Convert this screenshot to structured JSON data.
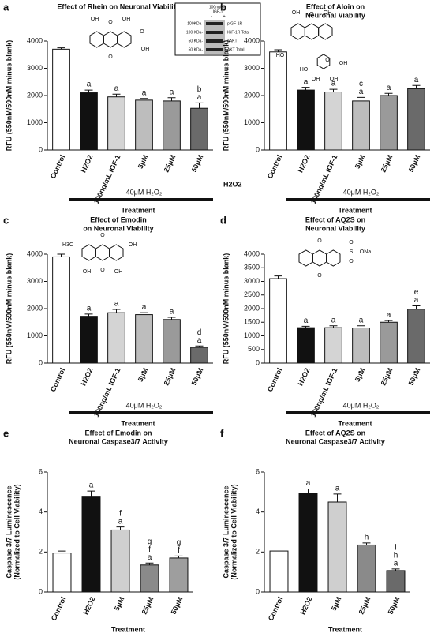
{
  "chart_data": [
    {
      "type": "bar",
      "panel": "a",
      "title": [
        "Effect of Rhein on Neuronal Viability"
      ],
      "y_label": [
        "RFU (550nM/590nM minus blank)"
      ],
      "x_label": "Treatment",
      "bracket_label": "40μM H₂O₂",
      "categories": [
        "Control",
        "H2O2",
        "100ng/mL IGF-1",
        "5μM",
        "25μM",
        "50μM"
      ],
      "values": [
        3700,
        2100,
        1950,
        1830,
        1800,
        1530
      ],
      "errors": [
        50,
        100,
        100,
        60,
        120,
        200
      ],
      "letters": [
        null,
        [
          "a"
        ],
        [
          "a"
        ],
        [
          "a"
        ],
        [
          "a"
        ],
        [
          "b",
          "a"
        ]
      ],
      "colors": [
        "#ffffff",
        "#111111",
        "#d4d4d4",
        "#bdbdbd",
        "#9a9a9a",
        "#6a6a6a"
      ],
      "ylim": [
        0,
        4000
      ],
      "yticks": [
        0,
        1000,
        2000,
        3000,
        4000
      ],
      "structure_labels": [
        "OH",
        "O",
        "OH",
        "O",
        "OH",
        "O"
      ],
      "blot": {
        "header": [
          "100ng/mL",
          "IGF-1"
        ],
        "lanes": [
          "-",
          "+"
        ],
        "markers": [
          "100KDa-",
          "100 KDa-",
          "50 KDa-",
          "50 KDa-"
        ],
        "bands": [
          "pIGF-1R",
          "IGF-1R Total",
          "pAKT",
          "AKT Total"
        ]
      }
    },
    {
      "type": "bar",
      "panel": "b",
      "title": [
        "Effect of Aloin on",
        "Neuronal Viability"
      ],
      "y_label": [
        "RFU (550nM/590nM minus blank)"
      ],
      "x_label": "Treatment",
      "bracket_label": "40μM H₂O₂",
      "extra_label": "H2O2",
      "categories": [
        "Control",
        "H2O2",
        "100ng/mL IGF-1",
        "5μM",
        "25μM",
        "50μM"
      ],
      "values": [
        3600,
        2200,
        2130,
        1800,
        2000,
        2250
      ],
      "errors": [
        80,
        100,
        100,
        130,
        80,
        120
      ],
      "letters": [
        null,
        [
          "a"
        ],
        [
          "a"
        ],
        [
          "c",
          "a"
        ],
        [
          "a"
        ],
        [
          "a"
        ]
      ],
      "colors": [
        "#ffffff",
        "#111111",
        "#d4d4d4",
        "#bdbdbd",
        "#9a9a9a",
        "#6a6a6a"
      ],
      "ylim": [
        0,
        4000
      ],
      "yticks": [
        0,
        1000,
        2000,
        3000,
        4000
      ],
      "structure_labels": [
        "OH",
        "O",
        "OH",
        "HO",
        "O",
        "OH",
        "OH",
        "OH",
        "HO"
      ]
    },
    {
      "type": "bar",
      "panel": "c",
      "title": [
        "Effect of Emodin",
        "on Neuronal Viability"
      ],
      "y_label": [
        "RFU (550nM/590nM minus blank)"
      ],
      "x_label": "Treatment",
      "bracket_label": "40μM H₂O₂",
      "categories": [
        "Control",
        "H2O2",
        "100ng/mL IGF-1",
        "5μM",
        "25μM",
        "50μM"
      ],
      "values": [
        3900,
        1720,
        1850,
        1780,
        1600,
        580
      ],
      "errors": [
        100,
        80,
        120,
        70,
        80,
        50
      ],
      "letters": [
        null,
        [
          "a"
        ],
        [
          "a"
        ],
        [
          "a"
        ],
        [
          "a"
        ],
        [
          "d",
          "a"
        ]
      ],
      "colors": [
        "#ffffff",
        "#111111",
        "#d4d4d4",
        "#bdbdbd",
        "#9a9a9a",
        "#6a6a6a"
      ],
      "ylim": [
        0,
        4000
      ],
      "yticks": [
        0,
        1000,
        2000,
        3000,
        4000
      ],
      "structure_labels": [
        "H3C",
        "O",
        "OH",
        "OH",
        "O",
        "OH"
      ]
    },
    {
      "type": "bar",
      "panel": "d",
      "title": [
        "Effect of AQ2S on",
        "Neuronal Viability"
      ],
      "y_label": [
        "RFU (550nM/590nM minus blank)"
      ],
      "x_label": "Treatment",
      "bracket_label": "40μM H₂O₂",
      "categories": [
        "Control",
        "H2O2",
        "100ng/mL IGF-1",
        "5μM",
        "25μM",
        "50μM"
      ],
      "values": [
        3100,
        1300,
        1300,
        1290,
        1500,
        1980
      ],
      "errors": [
        100,
        50,
        70,
        80,
        60,
        120
      ],
      "letters": [
        null,
        [
          "a"
        ],
        [
          "a"
        ],
        [
          "a"
        ],
        [
          "a"
        ],
        [
          "e",
          "a"
        ]
      ],
      "colors": [
        "#ffffff",
        "#111111",
        "#d4d4d4",
        "#bdbdbd",
        "#9a9a9a",
        "#6a6a6a"
      ],
      "ylim": [
        0,
        4000
      ],
      "yticks": [
        0,
        500,
        1000,
        1500,
        2000,
        2500,
        3000,
        3500,
        4000
      ],
      "structure_labels": [
        "O",
        "O",
        "S",
        "O",
        "O",
        "ONa"
      ]
    },
    {
      "type": "bar",
      "panel": "e",
      "title": [
        "Effect of Emodin on",
        "Neuronal Caspase3/7 Activity"
      ],
      "y_label": [
        "Caspase 3/7 Luminescence",
        "(Normalized to Cell Viability)"
      ],
      "x_label": "Treatment",
      "categories": [
        "Control",
        "H2O2",
        "5μM",
        "25μM",
        "50μM"
      ],
      "values": [
        1.95,
        4.75,
        3.1,
        1.35,
        1.7
      ],
      "errors": [
        0.1,
        0.3,
        0.15,
        0.1,
        0.1
      ],
      "letters": [
        null,
        [
          "a"
        ],
        [
          "f",
          "a"
        ],
        [
          "g",
          "f",
          "a"
        ],
        [
          "g",
          "f"
        ]
      ],
      "colors": [
        "#ffffff",
        "#111111",
        "#cfcfcf",
        "#8a8a8a",
        "#9e9e9e"
      ],
      "ylim": [
        0,
        6
      ],
      "yticks": [
        0,
        2,
        4,
        6
      ]
    },
    {
      "type": "bar",
      "panel": "f",
      "title": [
        "Effect of  AQ2S on",
        "Neuronal Caspase3/7 Activity"
      ],
      "y_label": [
        "Caspase 3/7 Luminescence",
        "(Normalized to Cell Viability)"
      ],
      "x_label": "Treatment",
      "categories": [
        "Control",
        "H2O2",
        "5μM",
        "25μM",
        "50μM"
      ],
      "values": [
        2.05,
        4.95,
        4.5,
        2.35,
        1.07
      ],
      "errors": [
        0.1,
        0.2,
        0.4,
        0.1,
        0.08
      ],
      "letters": [
        null,
        [
          "a"
        ],
        [
          "a"
        ],
        [
          "h"
        ],
        [
          "i",
          "h",
          "a"
        ]
      ],
      "colors": [
        "#ffffff",
        "#111111",
        "#cfcfcf",
        "#8a8a8a",
        "#6a6a6a"
      ],
      "ylim": [
        0,
        6
      ],
      "yticks": [
        0,
        2,
        4,
        6
      ]
    }
  ]
}
